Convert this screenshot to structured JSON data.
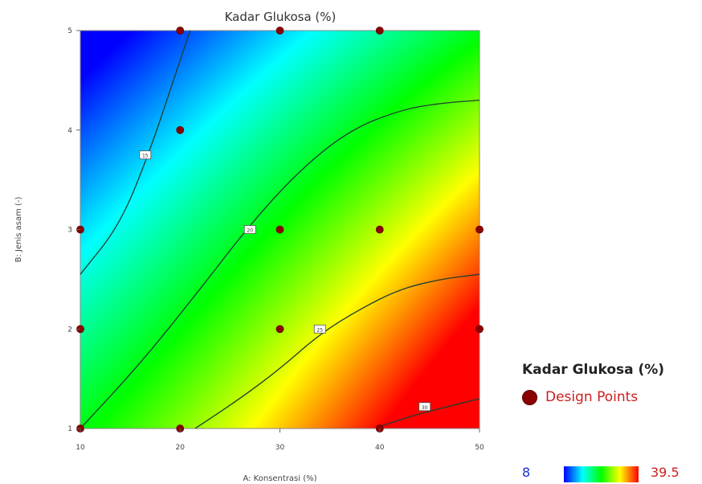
{
  "chart_data": {
    "type": "heatmap",
    "title": "Kadar Glukosa (%)",
    "xlabel": "A: Konsentrasi (%)",
    "ylabel": "B: Jenis asam (-)",
    "xlim": [
      10,
      50
    ],
    "ylim": [
      1,
      5
    ],
    "xticks": [
      "10",
      "20",
      "30",
      "40",
      "50"
    ],
    "yticks": [
      "1",
      "2",
      "3",
      "4",
      "5"
    ],
    "value_range": [
      8,
      39.5
    ],
    "colors": [
      "#0000ff",
      "#00ffff",
      "#00ff00",
      "#ffff00",
      "#ff0000"
    ],
    "contours": [
      {
        "label": "15",
        "points": [
          [
            10,
            2.55
          ],
          [
            14,
            3.05
          ],
          [
            17,
            3.8
          ],
          [
            19,
            4.4
          ],
          [
            21,
            5
          ]
        ],
        "label_at": [
          16.5,
          3.75
        ]
      },
      {
        "label": "20",
        "points": [
          [
            10,
            1
          ],
          [
            16,
            1.65
          ],
          [
            22,
            2.4
          ],
          [
            27,
            3.05
          ],
          [
            32,
            3.6
          ],
          [
            37,
            4.0
          ],
          [
            42,
            4.2
          ],
          [
            46,
            4.27
          ],
          [
            50,
            4.3
          ]
        ],
        "label_at": [
          27,
          3.0
        ]
      },
      {
        "label": "25",
        "points": [
          [
            21.5,
            1
          ],
          [
            26,
            1.3
          ],
          [
            30,
            1.6
          ],
          [
            34,
            1.95
          ],
          [
            38,
            2.2
          ],
          [
            42,
            2.4
          ],
          [
            46,
            2.5
          ],
          [
            50,
            2.55
          ]
        ],
        "label_at": [
          34,
          2.0
        ]
      },
      {
        "label": "30",
        "points": [
          [
            40,
            1.02
          ],
          [
            43,
            1.12
          ],
          [
            46,
            1.2
          ],
          [
            50,
            1.3
          ]
        ],
        "label_at": [
          44.5,
          1.22
        ]
      }
    ],
    "design_points": [
      [
        10,
        1
      ],
      [
        20,
        1
      ],
      [
        40,
        1
      ],
      [
        10,
        2
      ],
      [
        30,
        2
      ],
      [
        50,
        2
      ],
      [
        10,
        3
      ],
      [
        30,
        3
      ],
      [
        40,
        3
      ],
      [
        50,
        3
      ],
      [
        20,
        4
      ],
      [
        20,
        5
      ],
      [
        30,
        5
      ],
      [
        40,
        5
      ]
    ]
  },
  "legend": {
    "title": "Kadar Glukosa (%)",
    "points_label": "Design Points",
    "min_label": "8",
    "max_label": "39.5",
    "point_color": "#8b0000"
  }
}
